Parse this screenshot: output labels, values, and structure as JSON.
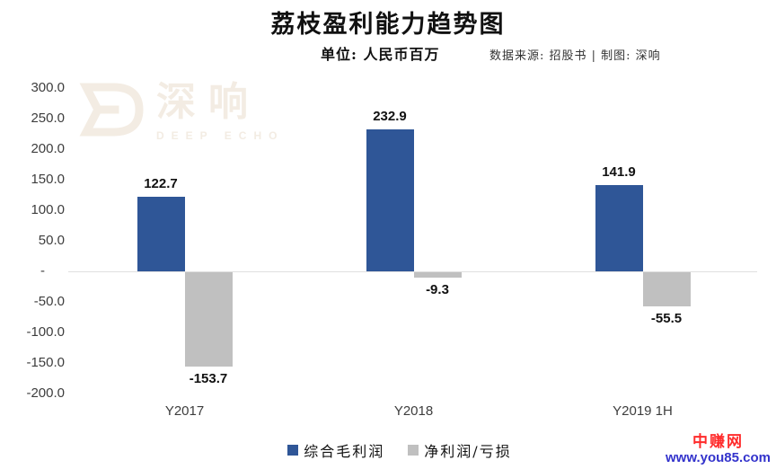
{
  "title": "荔枝盈利能力趋势图",
  "subtitle": "单位: 人民币百万",
  "source": "数据来源: 招股书 | 制图: 深响",
  "watermark": {
    "cn": "深响",
    "en": "DEEP ECHO",
    "color": "#F3ECE3"
  },
  "footer": {
    "site_name": "中赚网",
    "site_url": "www.you85.com",
    "name_color": "#FF2B2B",
    "url_color": "#3333CC"
  },
  "chart_data": {
    "type": "bar",
    "title": "荔枝盈利能力趋势图",
    "unit_label": "单位: 人民币百万",
    "categories": [
      "Y2017",
      "Y2018",
      "Y2019 1H"
    ],
    "series": [
      {
        "name": "综合毛利润",
        "color": "#2F5697",
        "values": [
          122.7,
          232.9,
          141.9
        ]
      },
      {
        "name": "净利润/亏损",
        "color": "#C0C0C0",
        "values": [
          -153.7,
          -9.3,
          -55.5
        ]
      }
    ],
    "ylim": [
      -200,
      300
    ],
    "ytick_step": 50,
    "ytick_labels": [
      "300.0",
      "250.0",
      "200.0",
      "150.0",
      "100.0",
      "50.0",
      "-",
      "-50.0",
      "-100.0",
      "-150.0",
      "-200.0"
    ],
    "grid": false,
    "legend_position": "bottom",
    "value_labels": true
  }
}
